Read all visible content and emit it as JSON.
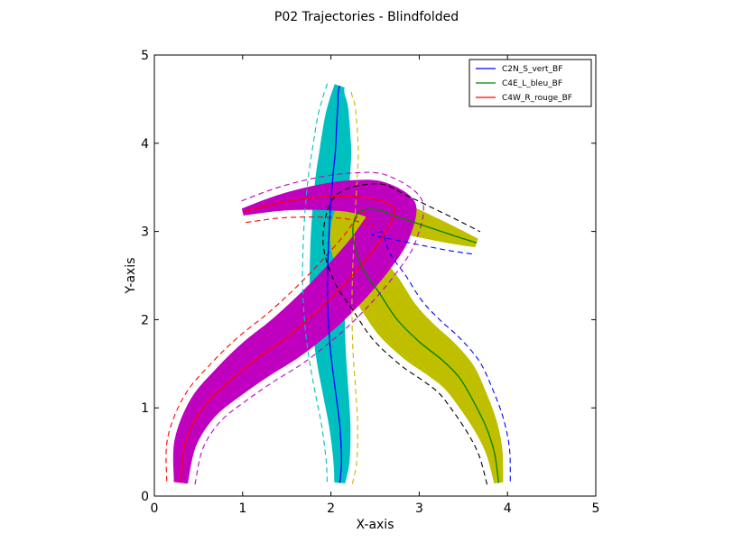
{
  "chart_data": {
    "type": "line",
    "title": "P02 Trajectories - Blindfolded",
    "xlabel": "X-axis",
    "ylabel": "Y-axis",
    "xlim": [
      0,
      5
    ],
    "ylim": [
      0,
      5
    ],
    "xticks": [
      "0",
      "1",
      "2",
      "3",
      "4",
      "5"
    ],
    "yticks": [
      "0",
      "1",
      "2",
      "3",
      "4",
      "5"
    ],
    "grid": false,
    "legend_position": "top-right",
    "series": [
      {
        "name": "C2N_S_vert_BF",
        "color": "#0000ff",
        "band_color": "#00bfbf",
        "x": [
          2.1,
          2.12,
          2.1,
          2.05,
          2.0,
          1.97,
          1.96,
          1.97,
          1.99,
          2.02,
          2.05,
          2.06,
          2.07,
          2.08,
          2.08,
          2.09,
          2.1
        ],
        "y": [
          0.15,
          0.4,
          0.8,
          1.2,
          1.6,
          2.0,
          2.4,
          2.8,
          3.2,
          3.6,
          3.9,
          4.1,
          4.3,
          4.45,
          4.55,
          4.62,
          4.65
        ]
      },
      {
        "name": "C4E_L_bleu_BF",
        "color": "#008000",
        "band_color": "#bfbf00",
        "x": [
          3.9,
          3.85,
          3.75,
          3.6,
          3.45,
          3.25,
          3.0,
          2.75,
          2.55,
          2.35,
          2.25,
          2.3,
          2.5,
          2.8,
          3.1,
          3.4,
          3.65
        ],
        "y": [
          0.15,
          0.5,
          0.8,
          1.1,
          1.35,
          1.55,
          1.75,
          2.0,
          2.3,
          2.6,
          2.95,
          3.2,
          3.25,
          3.15,
          3.05,
          2.95,
          2.87
        ]
      },
      {
        "name": "C4W_R_rouge_BF",
        "color": "#ff0000",
        "band_color": "#bf00bf",
        "x": [
          0.3,
          0.35,
          0.55,
          0.85,
          1.15,
          1.5,
          1.85,
          2.15,
          2.45,
          2.65,
          2.72,
          2.55,
          2.2,
          1.8,
          1.4,
          1.0
        ],
        "y": [
          0.15,
          0.6,
          1.0,
          1.3,
          1.55,
          1.8,
          2.1,
          2.4,
          2.75,
          3.05,
          3.25,
          3.35,
          3.4,
          3.38,
          3.32,
          3.22
        ]
      }
    ]
  }
}
